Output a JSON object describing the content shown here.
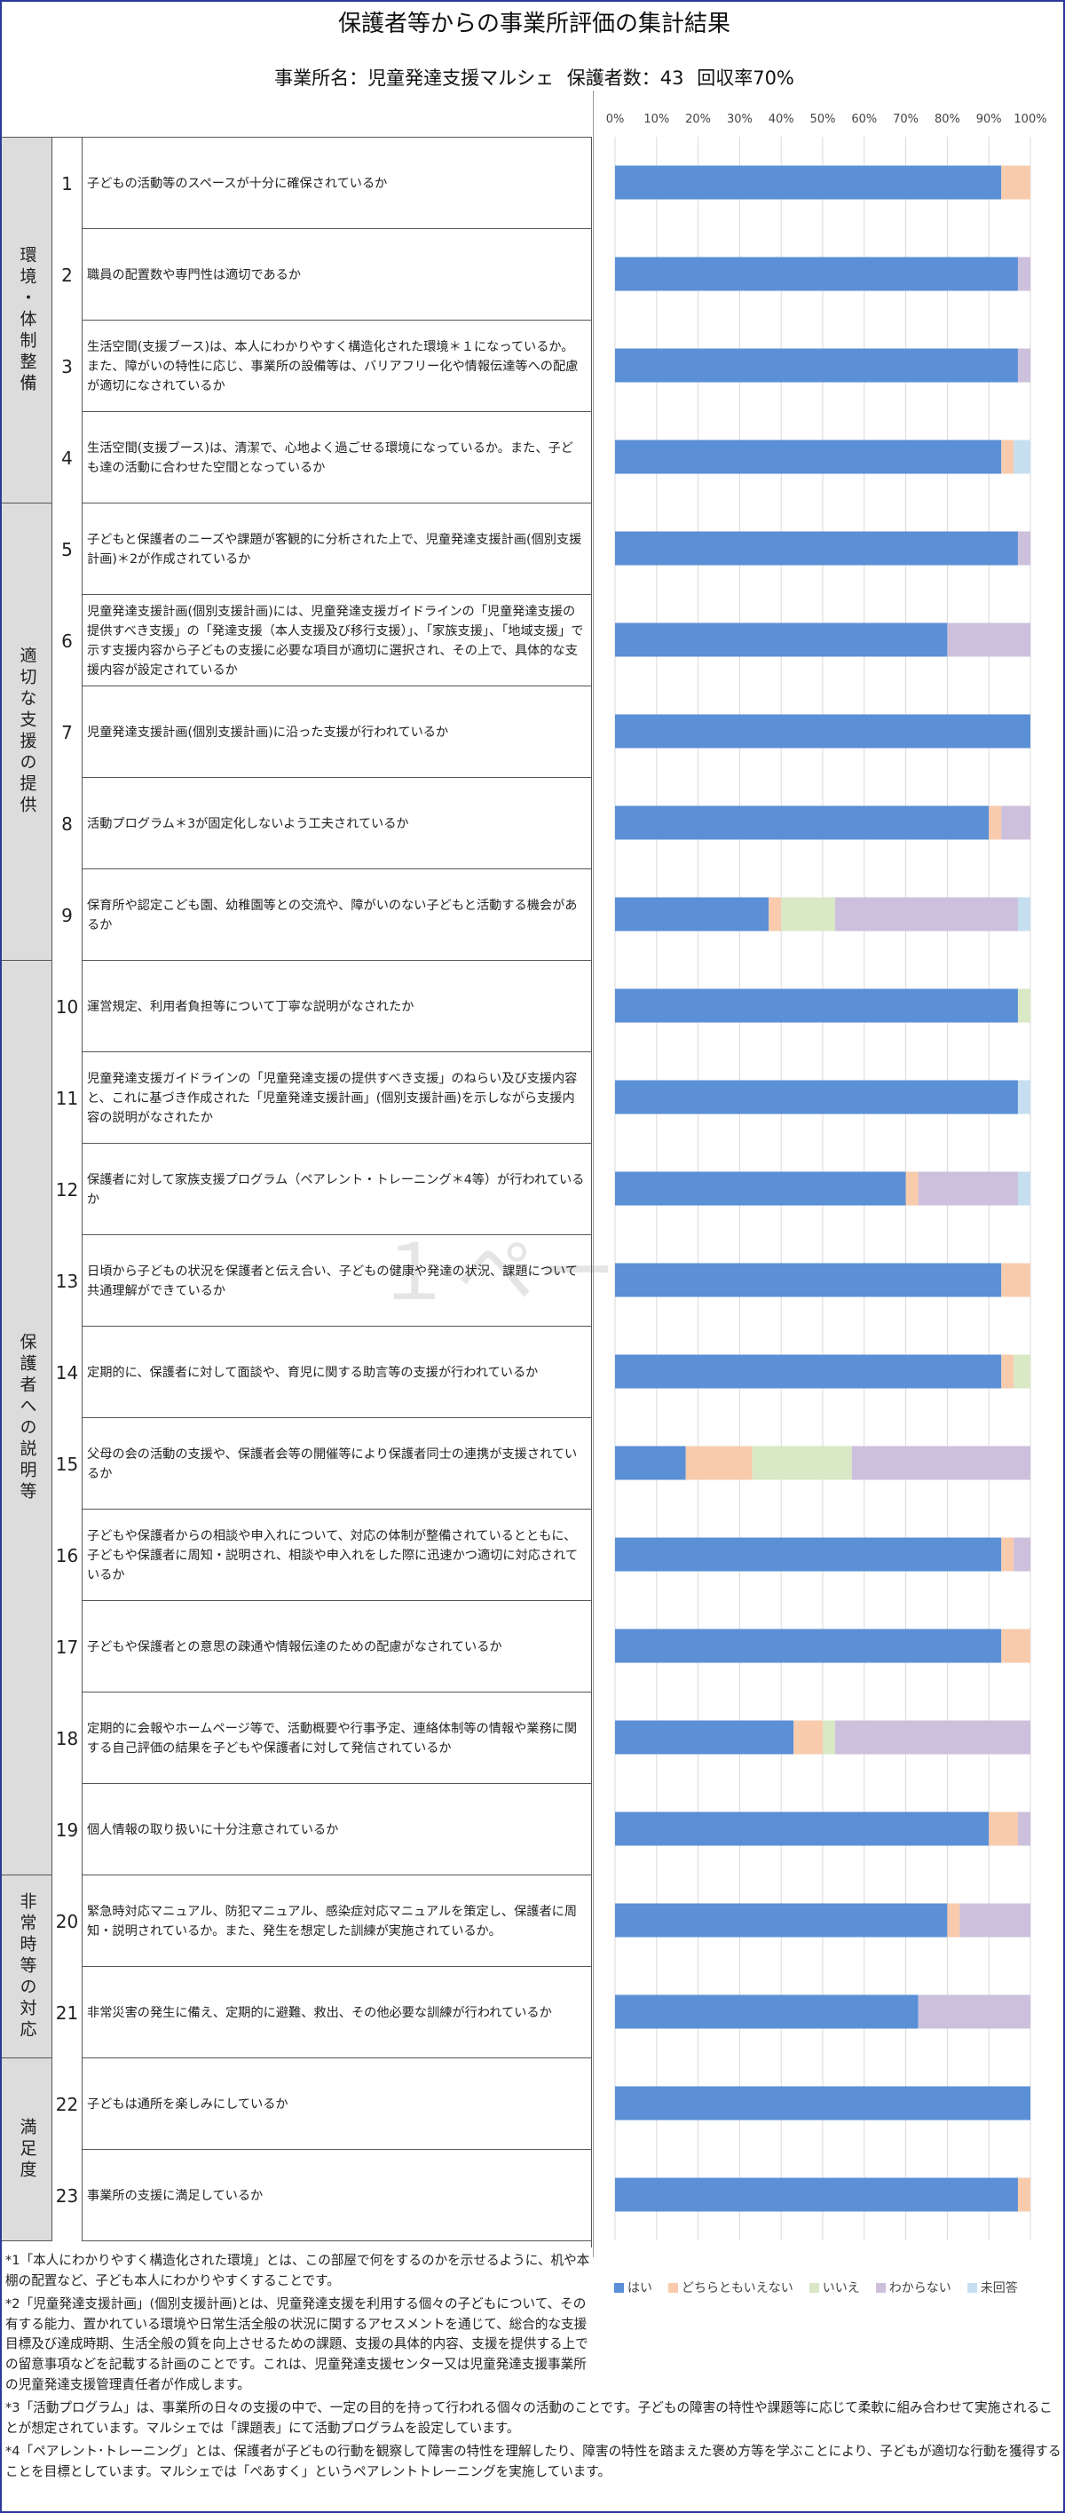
{
  "title": "保護者等からの事業所評価の集計結果",
  "office": "事業所名：児童発達支援マルシェ",
  "respondents": "保護者数：43",
  "rate": "回収率70%",
  "watermark": "１ペー",
  "categories": [
    {
      "label": "環境・体制整備",
      "from": 1,
      "to": 4
    },
    {
      "label": "適切な支援の提供",
      "from": 5,
      "to": 9
    },
    {
      "label": "保護者への説明等",
      "from": 10,
      "to": 19
    },
    {
      "label": "非常時等の対応",
      "from": 20,
      "to": 21
    },
    {
      "label": "満足度",
      "from": 22,
      "to": 23
    }
  ],
  "questions": [
    {
      "num": "1",
      "text": "子どもの活動等のスペースが十分に確保されているか"
    },
    {
      "num": "2",
      "text": "職員の配置数や専門性は適切であるか"
    },
    {
      "num": "3",
      "text": "生活空間(支援ブース)は、本人にわかりやすく構造化された環境＊１になっているか。また、障がいの特性に応じ、事業所の設備等は、バリアフリー化や情報伝達等への配慮が適切になされているか"
    },
    {
      "num": "4",
      "text": "生活空間(支援ブース)は、清潔で、心地よく過ごせる環境になっているか。また、子ども達の活動に合わせた空間となっているか"
    },
    {
      "num": "5",
      "text": "子どもと保護者のニーズや課題が客観的に分析された上で、児童発達支援計画(個別支援計画)＊2が作成されているか"
    },
    {
      "num": "6",
      "text": "児童発達支援計画(個別支援計画)には、児童発達支援ガイドラインの「児童発達支援の提供すべき支援」の「発達支援（本人支援及び移行支援）」、「家族支援」、「地域支援」で示す支援内容から子どもの支援に必要な項目が適切に選択され、その上で、具体的な支援内容が設定されているか"
    },
    {
      "num": "7",
      "text": "児童発達支援計画(個別支援計画)に沿った支援が行われているか"
    },
    {
      "num": "8",
      "text": "活動プログラム＊3が固定化しないよう工夫されているか"
    },
    {
      "num": "9",
      "text": "保育所や認定こども園、幼稚園等との交流や、障がいのない子どもと活動する機会があるか"
    },
    {
      "num": "10",
      "text": "運営規定、利用者負担等について丁寧な説明がなされたか"
    },
    {
      "num": "11",
      "text": "児童発達支援ガイドラインの「児童発達支援の提供すべき支援」のねらい及び支援内容と、これに基づき作成された「児童発達支援計画」(個別支援計画)を示しながら支援内容の説明がなされたか"
    },
    {
      "num": "12",
      "text": "保護者に対して家族支援プログラム（ペアレント・トレーニング＊4等）が行われているか"
    },
    {
      "num": "13",
      "text": "日頃から子どもの状況を保護者と伝え合い、子どもの健康や発達の状況、課題について共通理解ができているか"
    },
    {
      "num": "14",
      "text": "定期的に、保護者に対して面談や、育児に関する助言等の支援が行われているか"
    },
    {
      "num": "15",
      "text": "父母の会の活動の支援や、保護者会等の開催等により保護者同士の連携が支援されているか"
    },
    {
      "num": "16",
      "text": "子どもや保護者からの相談や申入れについて、対応の体制が整備されているとともに、子どもや保護者に周知・説明され、相談や申入れをした際に迅速かつ適切に対応されているか"
    },
    {
      "num": "17",
      "text": "子どもや保護者との意思の疎通や情報伝達のための配慮がなされているか"
    },
    {
      "num": "18",
      "text": "定期的に会報やホームページ等で、活動概要や行事予定、連絡体制等の情報や業務に関する自己評価の結果を子どもや保護者に対して発信されているか"
    },
    {
      "num": "19",
      "text": "個人情報の取り扱いに十分注意されているか"
    },
    {
      "num": "20",
      "text": "緊急時対応マニュアル、防犯マニュアル、感染症対応マニュアルを策定し、保護者に周知・説明されているか。また、発生を想定した訓練が実施されているか。"
    },
    {
      "num": "21",
      "text": "非常災害の発生に備え、定期的に避難、救出、その他必要な訓練が行われているか"
    },
    {
      "num": "22",
      "text": "子どもは通所を楽しみにしているか"
    },
    {
      "num": "23",
      "text": "事業所の支援に満足しているか"
    }
  ],
  "notes": [
    "*1「本人にわかりやすく構造化された環境」とは、この部屋で何をするのかを示せるように、机や本棚の配置など、子ども本人にわかりやすくすることです。",
    "*2「児童発達支援計画」(個別支援計画)とは、児童発達支援を利用する個々の子どもについて、その有する能力、置かれている環境や日常生活全般の状況に関するアセスメントを通じて、総合的な支援目標及び達成時期、生活全般の質を向上させるための課題、支援の具体的内容、支援を提供する上での留意事項などを記載する計画のことです。これは、児童発達支援センター又は児童発達支援事業所の児童発達支援管理責任者が作成します。",
    "*3「活動プログラム」は、事業所の日々の支援の中で、一定の目的を持って行われる個々の活動のことです。子どもの障害の特性や課題等に応じて柔軟に組み合わせて実施されることが想定されています。マルシェでは「課題表」にて活動プログラムを設定しています。",
    "*4「ペアレント･トレーニング」とは、保護者が子どもの行動を観察して障害の特性を理解したり、障害の特性を踏まえた褒め方等を学ぶことにより、子どもが適切な行動を獲得することを目標としています。マルシェでは「ぺあすく」というペアレントトレーニングを実施しています。"
  ],
  "chart_data": {
    "type": "bar",
    "orientation": "horizontal",
    "stacked": "percent",
    "x_ticks": [
      "0%",
      "10%",
      "20%",
      "30%",
      "40%",
      "50%",
      "60%",
      "70%",
      "80%",
      "90%",
      "100%"
    ],
    "xlim": [
      0,
      100
    ],
    "grid": true,
    "legend_position": "bottom",
    "categories": [
      "1",
      "2",
      "3",
      "4",
      "5",
      "6",
      "7",
      "8",
      "9",
      "10",
      "11",
      "12",
      "13",
      "14",
      "15",
      "16",
      "17",
      "18",
      "19",
      "20",
      "21",
      "22",
      "23"
    ],
    "series": [
      {
        "name": "はい",
        "color": "#5b8fd6",
        "values": [
          93,
          97,
          97,
          93,
          97,
          80,
          100,
          90,
          37,
          97,
          97,
          70,
          93,
          93,
          17,
          93,
          93,
          43,
          90,
          80,
          73,
          100,
          97
        ]
      },
      {
        "name": "どちらともいえない",
        "color": "#f8cbad",
        "values": [
          7,
          0,
          0,
          3,
          0,
          0,
          0,
          3,
          3,
          0,
          0,
          3,
          7,
          3,
          16,
          3,
          7,
          7,
          7,
          3,
          0,
          0,
          3
        ]
      },
      {
        "name": "いいえ",
        "color": "#d9e8c5",
        "values": [
          0,
          0,
          0,
          0,
          0,
          0,
          0,
          0,
          13,
          3,
          0,
          0,
          0,
          4,
          24,
          0,
          0,
          3,
          0,
          0,
          0,
          0,
          0
        ]
      },
      {
        "name": "わからない",
        "color": "#cdc0dc",
        "values": [
          0,
          3,
          3,
          0,
          3,
          20,
          0,
          7,
          44,
          0,
          0,
          24,
          0,
          0,
          43,
          4,
          0,
          47,
          3,
          17,
          27,
          0,
          0
        ]
      },
      {
        "name": "未回答",
        "color": "#c6dff0",
        "values": [
          0,
          0,
          0,
          4,
          0,
          0,
          0,
          0,
          3,
          0,
          3,
          3,
          0,
          0,
          0,
          0,
          0,
          0,
          0,
          0,
          0,
          0,
          0
        ]
      }
    ]
  }
}
